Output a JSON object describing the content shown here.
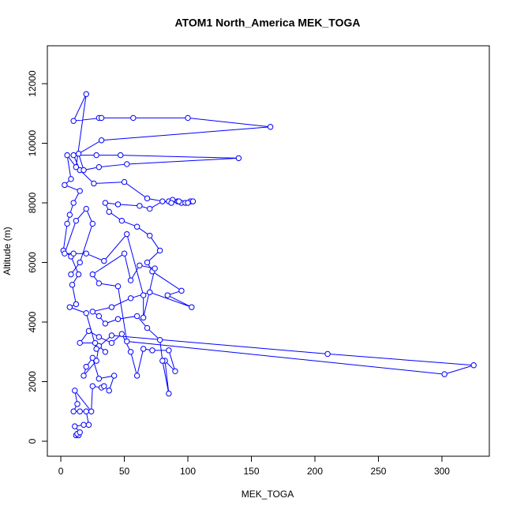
{
  "chart_data": {
    "type": "line",
    "title": "ATOM1 North_America MEK_TOGA",
    "xlabel": "MEK_TOGA",
    "ylabel": "Altitude (m)",
    "color": "#0000ff",
    "markers": "open-circle",
    "xlim": [
      -10.6,
      337.3
    ],
    "ylim": [
      -503,
      13272
    ],
    "xticks": [
      0,
      50,
      100,
      150,
      200,
      250,
      300
    ],
    "yticks": [
      0,
      2000,
      4000,
      6000,
      8000,
      10000,
      12000
    ],
    "x": [
      12,
      14,
      13,
      15,
      11,
      18,
      22,
      20,
      15,
      10,
      13,
      11,
      24,
      25,
      32,
      34,
      38,
      42,
      30,
      25,
      20,
      18,
      28,
      30,
      35,
      27,
      15,
      22,
      30,
      40,
      48,
      55,
      60,
      65,
      72,
      85,
      90,
      82,
      85,
      80,
      78,
      68,
      60,
      45,
      35,
      30,
      25,
      40,
      55,
      70,
      103,
      84,
      95,
      72,
      68,
      78,
      70,
      60,
      48,
      38,
      35,
      45,
      62,
      70,
      80,
      85,
      88,
      92,
      95,
      98,
      102,
      104,
      100,
      93,
      87,
      68,
      50,
      26,
      15,
      10,
      28,
      47,
      140,
      52,
      30,
      18,
      14,
      32,
      165,
      100,
      57,
      30,
      32,
      10,
      20,
      12,
      5,
      8,
      3,
      15,
      10,
      7,
      5,
      2,
      8,
      14,
      9,
      12,
      7,
      20,
      28,
      40,
      210,
      325,
      302,
      52,
      45,
      30,
      25,
      50,
      55,
      62,
      74,
      65,
      65,
      52,
      34,
      20,
      10,
      3,
      12,
      20,
      25,
      15,
      8
    ],
    "values": [
      200,
      200,
      250,
      300,
      500,
      550,
      550,
      1000,
      1000,
      1000,
      1250,
      1700,
      1000,
      1850,
      1800,
      1850,
      1700,
      2200,
      2100,
      2800,
      2500,
      2200,
      2700,
      3200,
      3000,
      3300,
      3300,
      3700,
      3500,
      3300,
      3600,
      3000,
      2200,
      3100,
      3050,
      3050,
      2350,
      2700,
      1600,
      2700,
      3400,
      3800,
      4200,
      4100,
      3950,
      4200,
      4350,
      4500,
      4800,
      5000,
      4500,
      4900,
      5050,
      5700,
      6000,
      6400,
      6900,
      7200,
      7400,
      7700,
      8000,
      7950,
      7900,
      7800,
      8050,
      8050,
      8100,
      8050,
      8000,
      8000,
      8050,
      8050,
      8000,
      8050,
      8000,
      8150,
      8700,
      8650,
      9100,
      9600,
      9600,
      9600,
      9500,
      9300,
      9200,
      9100,
      9650,
      10100,
      10550,
      10850,
      10850,
      10850,
      10850,
      10750,
      11650,
      9200,
      9600,
      8800,
      8600,
      8400,
      8000,
      7600,
      7300,
      6400,
      6200,
      5600,
      5250,
      4600,
      4500,
      4300,
      3100,
      3550,
      2930,
      2550,
      2250,
      3350,
      5200,
      5300,
      5600,
      6300,
      5400,
      5900,
      5800,
      4150,
      4900,
      6950,
      6050,
      6300,
      6300,
      6300,
      7400,
      7800,
      7300,
      6000,
      5600
    ]
  }
}
